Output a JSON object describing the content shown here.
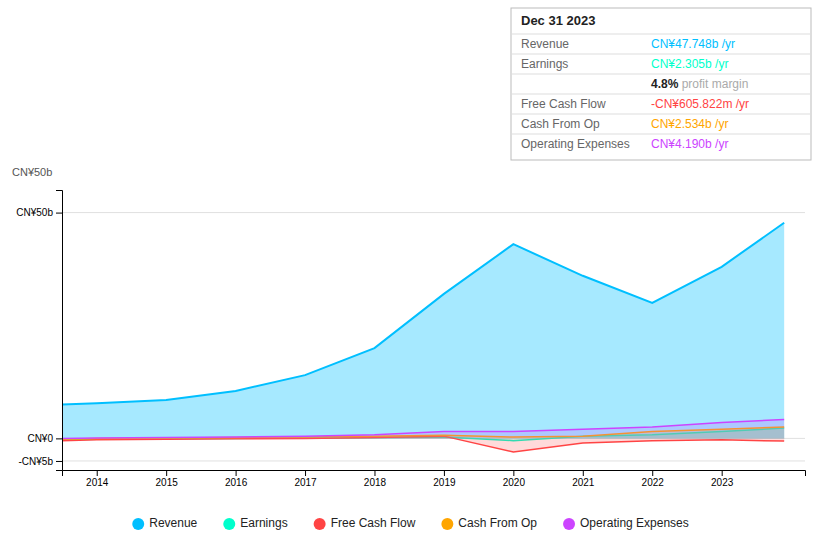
{
  "chart_data": {
    "type": "area",
    "title": "Dec 31 2023",
    "x": [
      2013.5,
      2014,
      2015,
      2016,
      2017,
      2018,
      2019,
      2020,
      2021,
      2022,
      2023,
      2023.9
    ],
    "series": [
      {
        "name": "Revenue",
        "color": "#00bfff",
        "values": [
          7.5,
          7.8,
          8.5,
          10.5,
          14.0,
          20.0,
          32.0,
          43.0,
          36.0,
          30.0,
          38.0,
          47.748
        ]
      },
      {
        "name": "Earnings",
        "color": "#00ffcc",
        "values": [
          -0.3,
          -0.2,
          -0.1,
          0.0,
          0.1,
          0.2,
          0.3,
          -0.5,
          0.5,
          0.8,
          1.5,
          2.305
        ]
      },
      {
        "name": "Free Cash Flow",
        "color": "#ff4444",
        "values": [
          -0.5,
          -0.3,
          -0.2,
          -0.1,
          0.0,
          0.2,
          0.5,
          -3.0,
          -1.0,
          -0.5,
          -0.3,
          -0.606
        ]
      },
      {
        "name": "Cash From Op",
        "color": "#ffa500",
        "values": [
          -0.2,
          0.0,
          0.1,
          0.2,
          0.3,
          0.5,
          0.7,
          0.3,
          0.5,
          1.5,
          2.0,
          2.534
        ]
      },
      {
        "name": "Operating Expenses",
        "color": "#cc44ff",
        "values": [
          0.0,
          0.1,
          0.2,
          0.3,
          0.5,
          0.8,
          1.5,
          1.5,
          2.0,
          2.5,
          3.5,
          4.19
        ]
      }
    ],
    "xlim": [
      2013.5,
      2024.2
    ],
    "xticks": [
      2014,
      2015,
      2016,
      2017,
      2018,
      2019,
      2020,
      2021,
      2022,
      2023
    ],
    "ylim": [
      -7,
      55
    ],
    "yticks": [
      {
        "value": -5,
        "label": "-CN¥5b"
      },
      {
        "value": 0,
        "label": "CN¥0"
      },
      {
        "value": 50,
        "label": "CN¥50b"
      }
    ],
    "grid": true,
    "annotations": [
      {
        "text": "CN¥50b"
      },
      {
        "label": "Revenue",
        "text": "CN¥47.748b /yr",
        "color": "#00bfff"
      },
      {
        "label": "Earnings",
        "text": "CN¥2.305b /yr",
        "color": "#00ffcc"
      },
      {
        "prefix": "4.8%",
        "text": " profit margin",
        "color": "#aaaaaa"
      },
      {
        "label": "Free Cash Flow",
        "text": "-CN¥605.822m /yr",
        "color": "#ff4444"
      },
      {
        "label": "Cash From Op",
        "text": "CN¥2.534b /yr",
        "color": "#ffa500"
      },
      {
        "label": "Operating Expenses",
        "text": "CN¥4.190b /yr",
        "color": "#cc44ff"
      }
    ]
  }
}
